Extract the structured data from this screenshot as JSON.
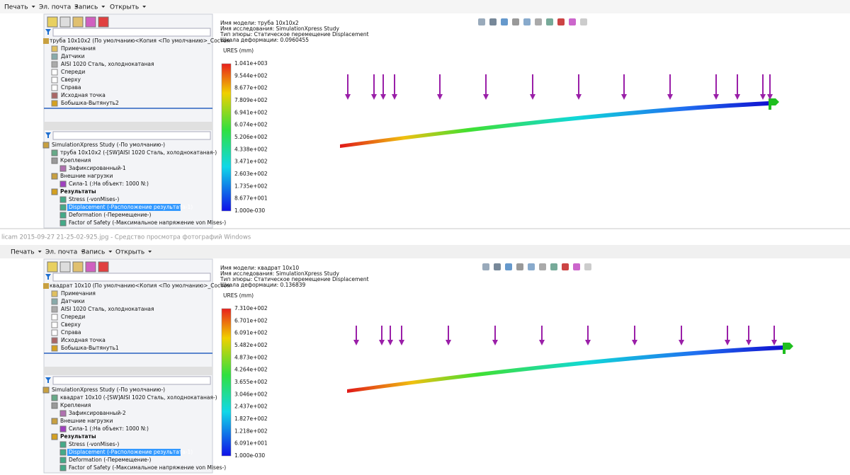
{
  "viewer_title": "licam 2015-09-27 21-25-02-925.jpg - Средство просмотра фотографий Windows",
  "windows": [
    {
      "toolbar": [
        "Печать",
        "Эл. почта",
        "Запись",
        "Открыть"
      ],
      "feature_root": "труба 10x10x2 (По умолчанию<Копия <По умолчанию>_Состоя",
      "feature_items": [
        "Примечания",
        "Датчики",
        "AISI 1020 Сталь, холоднокатаная",
        "Спереди",
        "Сверху",
        "Справа",
        "Исходная точка",
        "Бобышка-Вытянуть2"
      ],
      "study_items": [
        "SimulationXpress Study (-По умолчанию-)",
        "труба 10x10x2 (-[SW]AISI 1020 Сталь, холоднокатаная-)",
        "Крепления",
        "Зафиксированный-1",
        "Внешние нагрузки",
        "Сила-1 (:На объект: 1000 N:)",
        "Результаты",
        "Stress (-vonMises-)",
        "Displacement (-Расположение результата-1)",
        "Deformation (-Перемещение-)",
        "Factor of Safety (-Максимальное напряжение von Mises-)"
      ],
      "info": [
        "Имя модели: труба 10x10x2",
        "Имя исследования: SimulationXpress Study",
        "Тип эпюры: Статическое перемещение Displacement",
        "Шкала деформации: 0.0960455"
      ],
      "legend_title": "URES (mm)",
      "legend_labels": [
        "1.041e+003",
        "9.544e+002",
        "8.677e+002",
        "7.809e+002",
        "6.941e+002",
        "6.074e+002",
        "5.206e+002",
        "4.338e+002",
        "3.471e+002",
        "2.603e+002",
        "1.735e+002",
        "8.677e+001",
        "1.000e-030"
      ]
    },
    {
      "toolbar": [
        "Печать",
        "Эл. почта",
        "Запись",
        "Открыть"
      ],
      "feature_root": "квадрат 10x10 (По умолчанию<Копия <По умолчанию>_Состоя",
      "feature_items": [
        "Примечания",
        "Датчики",
        "AISI 1020 Сталь, холоднокатаная",
        "Спереди",
        "Сверху",
        "Справа",
        "Исходная точка",
        "Бобышка-Вытянуть1"
      ],
      "study_items": [
        "SimulationXpress Study (-По умолчанию-)",
        "квадрат 10x10 (-[SW]AISI 1020 Сталь, холоднокатаная-)",
        "Крепления",
        "Зафиксированный-2",
        "Внешние нагрузки",
        "Сила-1 (:На объект: 1000 N:)",
        "Результаты",
        "Stress (-vonMises-)",
        "Displacement (-Расположение результата-1)",
        "Deformation (-Перемещение-)",
        "Factor of Safety (-Максимальное напряжение von Mises-)"
      ],
      "info": [
        "Имя модели: квадрат 10x10",
        "Имя исследования: SimulationXpress Study",
        "Тип эпюры: Статическое перемещение Displacement",
        "Шкала деформации: 0.136839"
      ],
      "legend_title": "URES (mm)",
      "legend_labels": [
        "7.310e+002",
        "6.701e+002",
        "6.091e+002",
        "5.482e+002",
        "4.873e+002",
        "4.264e+002",
        "3.655e+002",
        "3.046e+002",
        "2.437e+002",
        "1.827e+002",
        "1.218e+002",
        "6.091e+001",
        "1.000e-030"
      ]
    }
  ]
}
